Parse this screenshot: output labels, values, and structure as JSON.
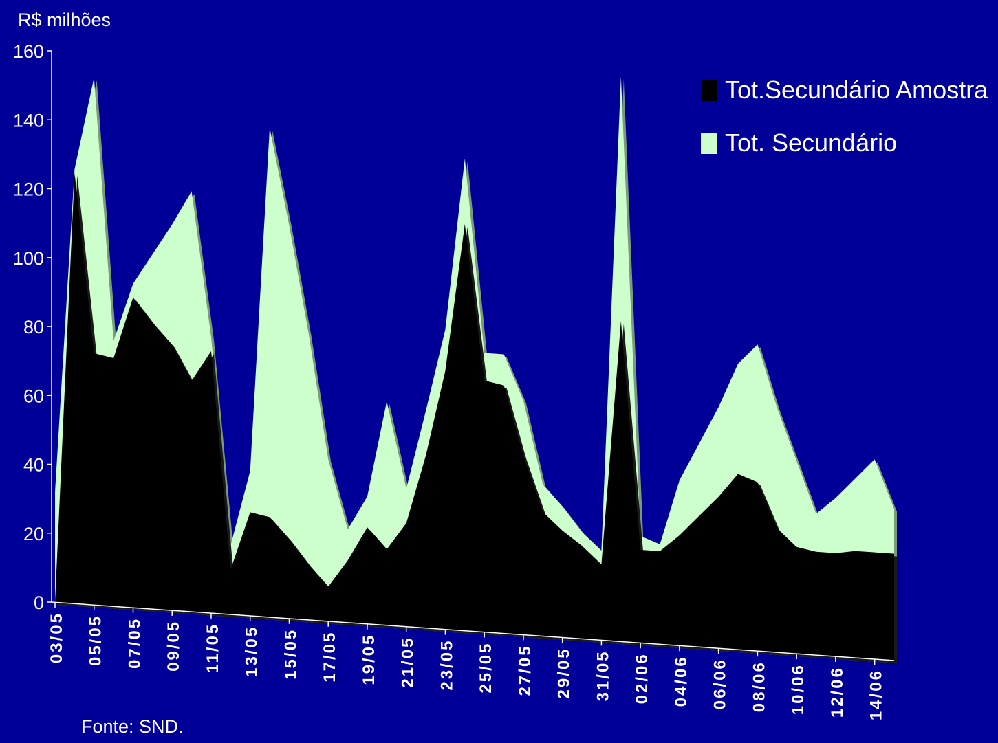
{
  "chart_data": {
    "type": "area",
    "unit_label": "R$ milhões",
    "source": "Fonte: SND.",
    "ylim": [
      0,
      160
    ],
    "yticks": [
      0,
      20,
      40,
      60,
      80,
      100,
      120,
      140,
      160
    ],
    "x_labels": [
      "03/05",
      "05/05",
      "07/05",
      "09/05",
      "11/05",
      "13/05",
      "15/05",
      "17/05",
      "19/05",
      "21/05",
      "23/05",
      "25/05",
      "27/05",
      "29/05",
      "31/05",
      "02/06",
      "04/06",
      "06/06",
      "08/06",
      "10/06",
      "12/06",
      "14/06"
    ],
    "x": [
      "03/05",
      "04/05",
      "05/05",
      "06/05",
      "07/05",
      "08/05",
      "09/05",
      "10/05",
      "11/05",
      "12/05",
      "13/05",
      "14/05",
      "15/05",
      "16/05",
      "17/05",
      "18/05",
      "19/05",
      "20/05",
      "21/05",
      "22/05",
      "23/05",
      "24/05",
      "25/05",
      "26/05",
      "27/05",
      "28/05",
      "29/05",
      "30/05",
      "31/05",
      "01/06",
      "02/06",
      "03/06",
      "04/06",
      "05/06",
      "06/06",
      "07/06",
      "08/06",
      "09/06",
      "10/06",
      "11/06",
      "12/06",
      "13/06",
      "14/06",
      "15/06"
    ],
    "legend_position": "top-right",
    "series": [
      {
        "name": "Tot.Secundário Amostra",
        "color": "#000000",
        "values": [
          0,
          125,
          73,
          72,
          90,
          83,
          77,
          67,
          76,
          13,
          30,
          29,
          23,
          16,
          10,
          18,
          28,
          22,
          30,
          50,
          75,
          118,
          73,
          72,
          52,
          36,
          31,
          27,
          22,
          93,
          27,
          27,
          32,
          38,
          44,
          51,
          49,
          36,
          31,
          30,
          30,
          31,
          31,
          31
        ]
      },
      {
        "name": "Tot. Secundário",
        "color": "#ccffcc",
        "values": [
          32,
          126,
          153,
          77,
          94,
          103,
          112,
          122,
          80,
          20,
          42,
          142,
          114,
          83,
          47,
          27,
          37,
          65,
          40,
          63,
          87,
          137,
          81,
          81,
          68,
          44,
          38,
          31,
          26,
          164,
          31,
          29,
          48,
          59,
          70,
          83,
          89,
          71,
          56,
          41,
          46,
          52,
          58,
          44
        ]
      }
    ],
    "grid": false
  }
}
